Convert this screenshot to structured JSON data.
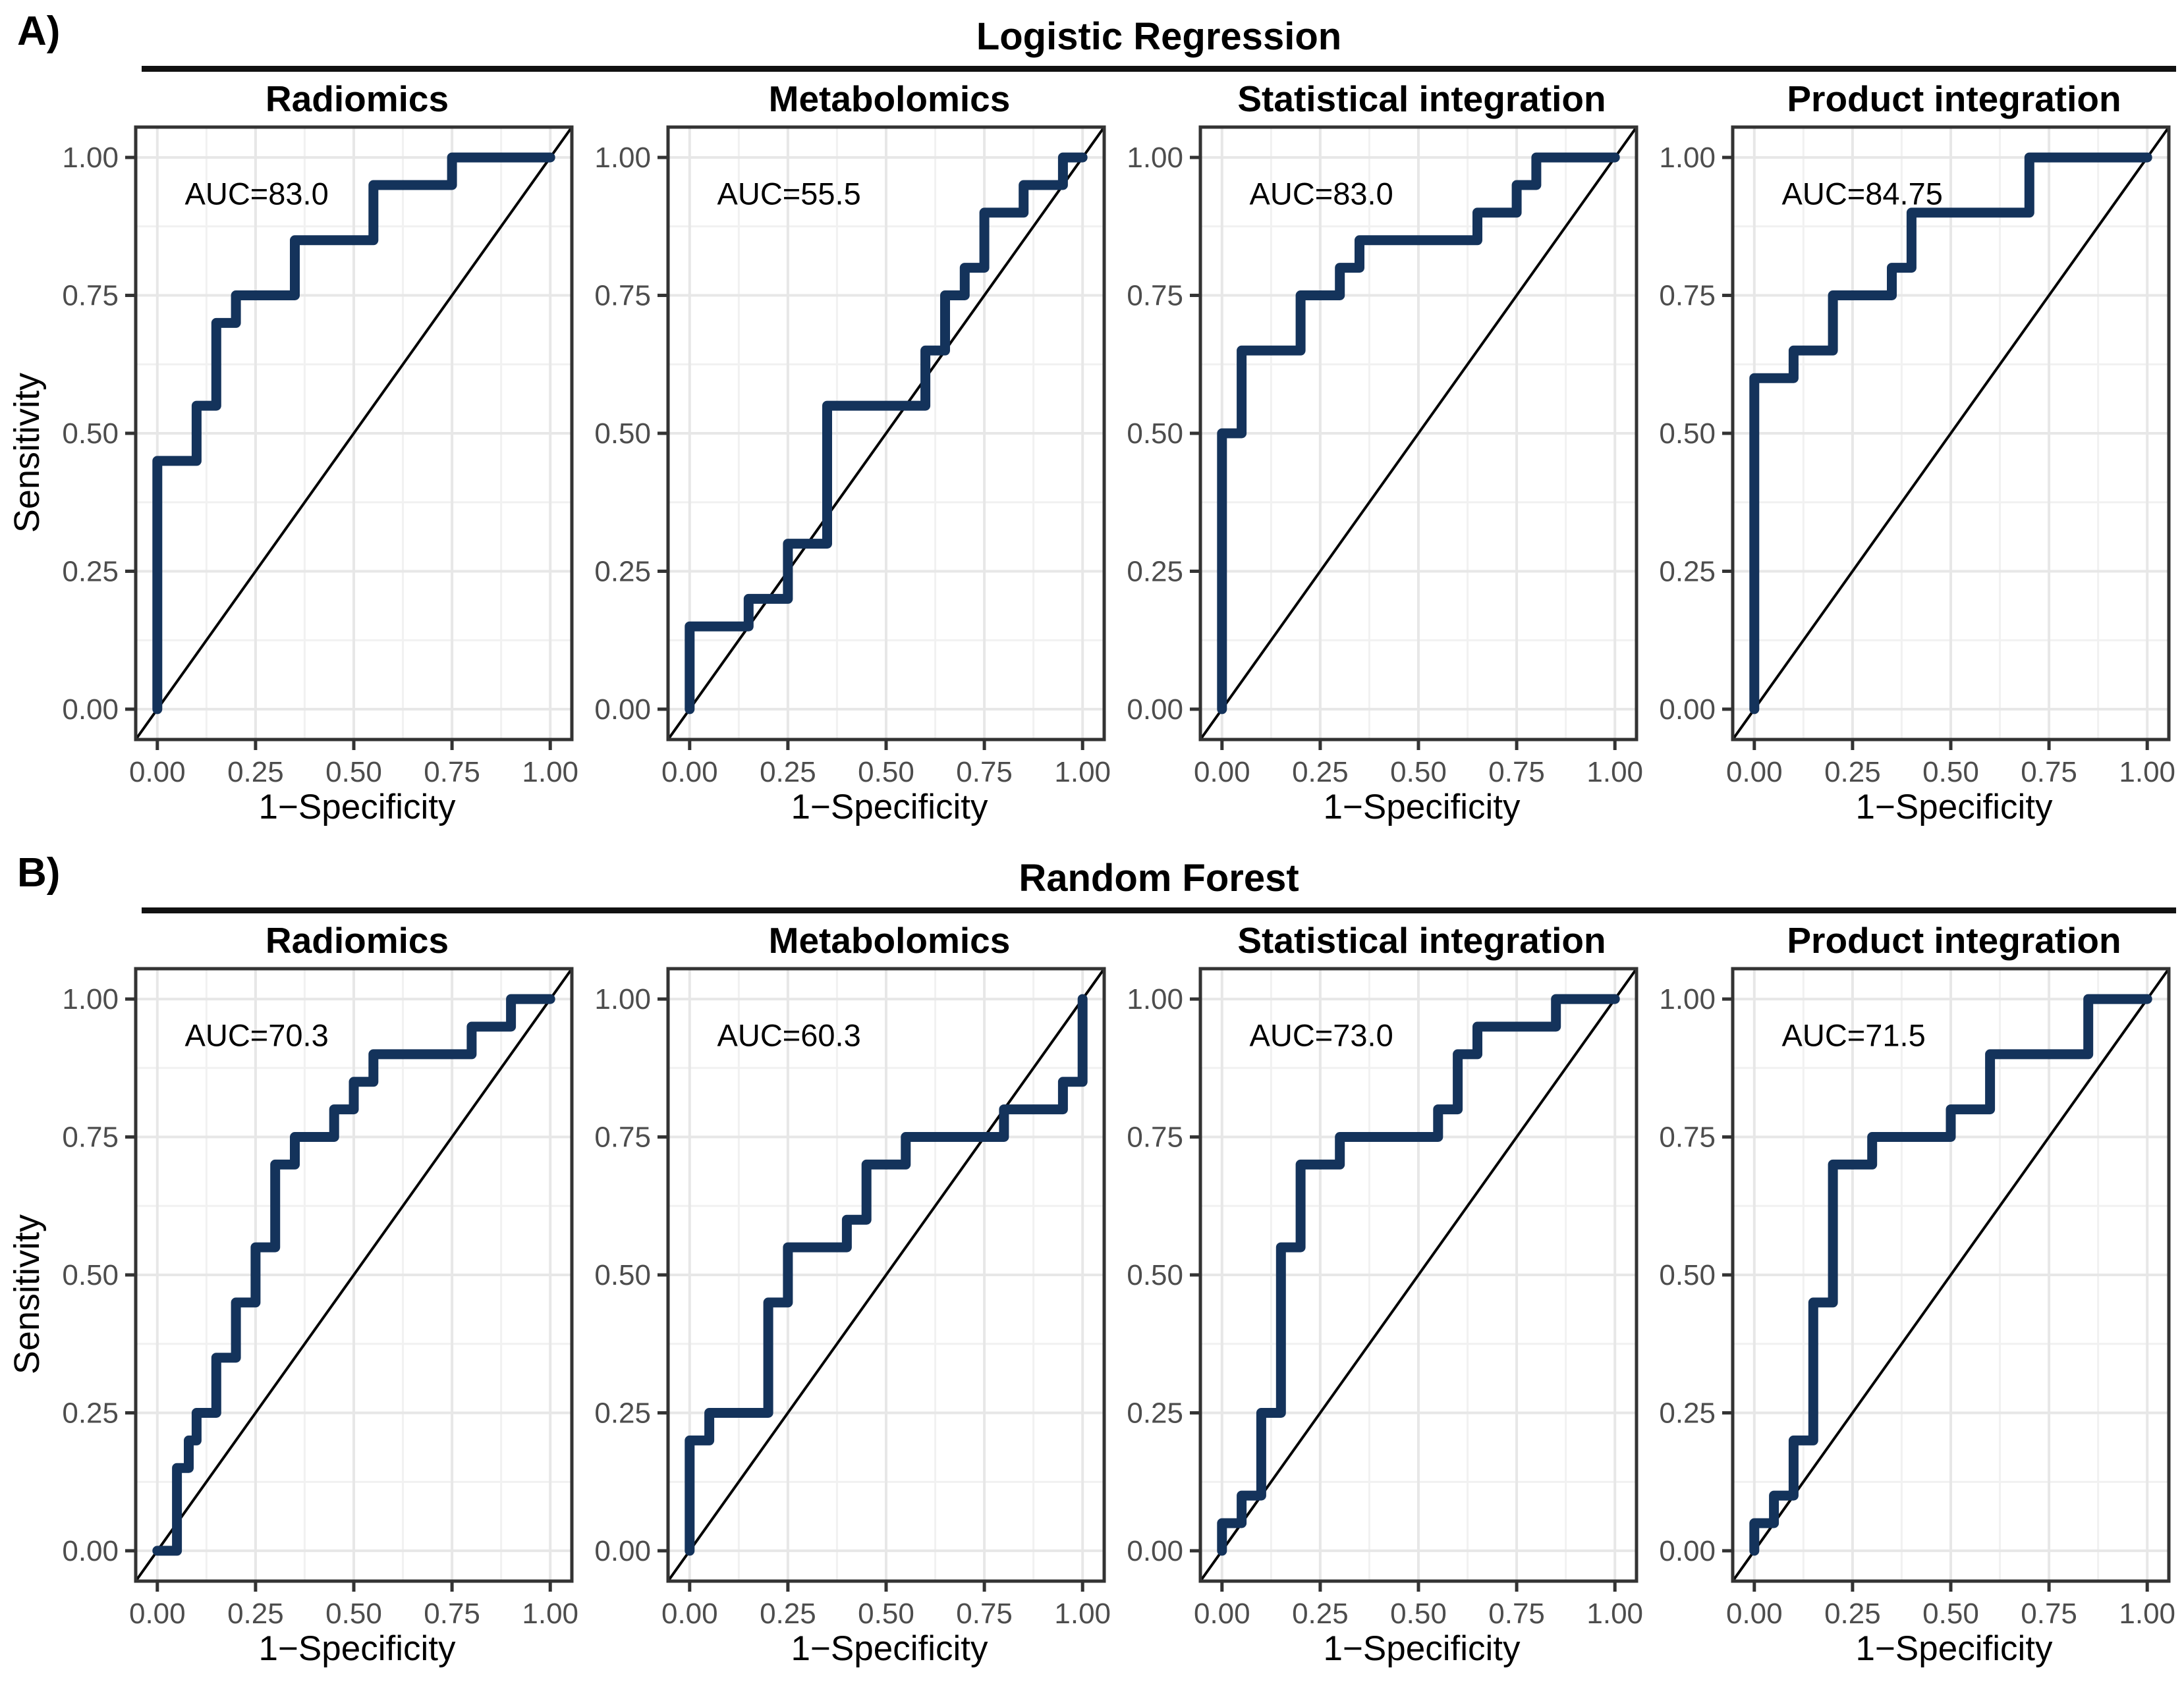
{
  "figure": {
    "sections": [
      {
        "label": "A)",
        "title": "Logistic Regression"
      },
      {
        "label": "B)",
        "title": "Random Forest"
      }
    ],
    "axes": {
      "x_label": "1−Specificity",
      "y_label": "Sensitivity",
      "tick_values": [
        0,
        0.25,
        0.5,
        0.75,
        1
      ],
      "tick_labels": [
        "0.00",
        "0.25",
        "0.50",
        "0.75",
        "1.00"
      ],
      "minor_tick_values": [
        0.125,
        0.375,
        0.625,
        0.875
      ]
    },
    "colors": {
      "curve": "#14335b",
      "diagonal": "#000000",
      "grid_major": "#e7e7e7",
      "grid_minor": "#f1f1f1",
      "panel_border": "#333333",
      "tick_text": "#4d4d4d"
    }
  },
  "chart_data": [
    {
      "type": "line",
      "model": "Logistic Regression",
      "title": "Radiomics",
      "annotation": "AUC=83.0",
      "auc": 83.0,
      "xlabel": "1−Specificity",
      "ylabel": "Sensitivity",
      "xlim": [
        0,
        1
      ],
      "ylim": [
        0,
        1
      ],
      "grid": true,
      "series": [
        {
          "name": "ROC curve",
          "points": [
            [
              0,
              0
            ],
            [
              0,
              0.45
            ],
            [
              0.1,
              0.45
            ],
            [
              0.1,
              0.55
            ],
            [
              0.15,
              0.55
            ],
            [
              0.15,
              0.7
            ],
            [
              0.2,
              0.7
            ],
            [
              0.2,
              0.75
            ],
            [
              0.35,
              0.75
            ],
            [
              0.35,
              0.85
            ],
            [
              0.55,
              0.85
            ],
            [
              0.55,
              0.95
            ],
            [
              0.75,
              0.95
            ],
            [
              0.75,
              1.0
            ],
            [
              1.0,
              1.0
            ]
          ]
        },
        {
          "name": "chance diagonal",
          "points": [
            [
              0,
              0
            ],
            [
              1,
              1
            ]
          ]
        }
      ]
    },
    {
      "type": "line",
      "model": "Logistic Regression",
      "title": "Metabolomics",
      "annotation": "AUC=55.5",
      "auc": 55.5,
      "xlabel": "1−Specificity",
      "ylabel": "Sensitivity",
      "xlim": [
        0,
        1
      ],
      "ylim": [
        0,
        1
      ],
      "grid": true,
      "series": [
        {
          "name": "ROC curve",
          "points": [
            [
              0,
              0
            ],
            [
              0,
              0.15
            ],
            [
              0.15,
              0.15
            ],
            [
              0.15,
              0.2
            ],
            [
              0.25,
              0.2
            ],
            [
              0.25,
              0.3
            ],
            [
              0.35,
              0.3
            ],
            [
              0.35,
              0.55
            ],
            [
              0.6,
              0.55
            ],
            [
              0.6,
              0.65
            ],
            [
              0.65,
              0.65
            ],
            [
              0.65,
              0.75
            ],
            [
              0.7,
              0.75
            ],
            [
              0.7,
              0.8
            ],
            [
              0.75,
              0.8
            ],
            [
              0.75,
              0.9
            ],
            [
              0.85,
              0.9
            ],
            [
              0.85,
              0.95
            ],
            [
              0.95,
              0.95
            ],
            [
              0.95,
              1.0
            ],
            [
              1.0,
              1.0
            ]
          ]
        },
        {
          "name": "chance diagonal",
          "points": [
            [
              0,
              0
            ],
            [
              1,
              1
            ]
          ]
        }
      ]
    },
    {
      "type": "line",
      "model": "Logistic Regression",
      "title": "Statistical integration",
      "annotation": "AUC=83.0",
      "auc": 83.0,
      "xlabel": "1−Specificity",
      "ylabel": "Sensitivity",
      "xlim": [
        0,
        1
      ],
      "ylim": [
        0,
        1
      ],
      "grid": true,
      "series": [
        {
          "name": "ROC curve",
          "points": [
            [
              0,
              0
            ],
            [
              0,
              0.5
            ],
            [
              0.05,
              0.5
            ],
            [
              0.05,
              0.65
            ],
            [
              0.2,
              0.65
            ],
            [
              0.2,
              0.75
            ],
            [
              0.3,
              0.75
            ],
            [
              0.3,
              0.8
            ],
            [
              0.35,
              0.8
            ],
            [
              0.35,
              0.85
            ],
            [
              0.65,
              0.85
            ],
            [
              0.65,
              0.9
            ],
            [
              0.75,
              0.9
            ],
            [
              0.75,
              0.95
            ],
            [
              0.8,
              0.95
            ],
            [
              0.8,
              1.0
            ],
            [
              1.0,
              1.0
            ]
          ]
        },
        {
          "name": "chance diagonal",
          "points": [
            [
              0,
              0
            ],
            [
              1,
              1
            ]
          ]
        }
      ]
    },
    {
      "type": "line",
      "model": "Logistic Regression",
      "title": "Product integration",
      "annotation": "AUC=84.75",
      "auc": 84.75,
      "xlabel": "1−Specificity",
      "ylabel": "Sensitivity",
      "xlim": [
        0,
        1
      ],
      "ylim": [
        0,
        1
      ],
      "grid": true,
      "series": [
        {
          "name": "ROC curve",
          "points": [
            [
              0,
              0
            ],
            [
              0,
              0.6
            ],
            [
              0.1,
              0.6
            ],
            [
              0.1,
              0.65
            ],
            [
              0.2,
              0.65
            ],
            [
              0.2,
              0.75
            ],
            [
              0.35,
              0.75
            ],
            [
              0.35,
              0.8
            ],
            [
              0.4,
              0.8
            ],
            [
              0.4,
              0.9
            ],
            [
              0.7,
              0.9
            ],
            [
              0.7,
              1.0
            ],
            [
              1.0,
              1.0
            ]
          ]
        },
        {
          "name": "chance diagonal",
          "points": [
            [
              0,
              0
            ],
            [
              1,
              1
            ]
          ]
        }
      ]
    },
    {
      "type": "line",
      "model": "Random Forest",
      "title": "Radiomics",
      "annotation": "AUC=70.3",
      "auc": 70.3,
      "xlabel": "1−Specificity",
      "ylabel": "Sensitivity",
      "xlim": [
        0,
        1
      ],
      "ylim": [
        0,
        1
      ],
      "grid": true,
      "series": [
        {
          "name": "ROC curve",
          "points": [
            [
              0,
              0
            ],
            [
              0.05,
              0
            ],
            [
              0.05,
              0.15
            ],
            [
              0.08,
              0.15
            ],
            [
              0.08,
              0.2
            ],
            [
              0.1,
              0.2
            ],
            [
              0.1,
              0.25
            ],
            [
              0.15,
              0.25
            ],
            [
              0.15,
              0.35
            ],
            [
              0.2,
              0.35
            ],
            [
              0.2,
              0.45
            ],
            [
              0.25,
              0.45
            ],
            [
              0.25,
              0.55
            ],
            [
              0.3,
              0.55
            ],
            [
              0.3,
              0.7
            ],
            [
              0.35,
              0.7
            ],
            [
              0.35,
              0.75
            ],
            [
              0.45,
              0.75
            ],
            [
              0.45,
              0.8
            ],
            [
              0.5,
              0.8
            ],
            [
              0.5,
              0.85
            ],
            [
              0.55,
              0.85
            ],
            [
              0.55,
              0.9
            ],
            [
              0.8,
              0.9
            ],
            [
              0.8,
              0.95
            ],
            [
              0.9,
              0.95
            ],
            [
              0.9,
              1.0
            ],
            [
              1.0,
              1.0
            ]
          ]
        },
        {
          "name": "chance diagonal",
          "points": [
            [
              0,
              0
            ],
            [
              1,
              1
            ]
          ]
        }
      ]
    },
    {
      "type": "line",
      "model": "Random Forest",
      "title": "Metabolomics",
      "annotation": "AUC=60.3",
      "auc": 60.3,
      "xlabel": "1−Specificity",
      "ylabel": "Sensitivity",
      "xlim": [
        0,
        1
      ],
      "ylim": [
        0,
        1
      ],
      "grid": true,
      "series": [
        {
          "name": "ROC curve",
          "points": [
            [
              0,
              0
            ],
            [
              0,
              0.2
            ],
            [
              0.05,
              0.2
            ],
            [
              0.05,
              0.25
            ],
            [
              0.2,
              0.25
            ],
            [
              0.2,
              0.45
            ],
            [
              0.25,
              0.45
            ],
            [
              0.25,
              0.55
            ],
            [
              0.4,
              0.55
            ],
            [
              0.4,
              0.6
            ],
            [
              0.45,
              0.6
            ],
            [
              0.45,
              0.7
            ],
            [
              0.55,
              0.7
            ],
            [
              0.55,
              0.75
            ],
            [
              0.8,
              0.75
            ],
            [
              0.8,
              0.8
            ],
            [
              0.95,
              0.8
            ],
            [
              0.95,
              0.85
            ],
            [
              1.0,
              0.85
            ],
            [
              1.0,
              1.0
            ]
          ]
        },
        {
          "name": "chance diagonal",
          "points": [
            [
              0,
              0
            ],
            [
              1,
              1
            ]
          ]
        }
      ]
    },
    {
      "type": "line",
      "model": "Random Forest",
      "title": "Statistical integration",
      "annotation": "AUC=73.0",
      "auc": 73.0,
      "xlabel": "1−Specificity",
      "ylabel": "Sensitivity",
      "xlim": [
        0,
        1
      ],
      "ylim": [
        0,
        1
      ],
      "grid": true,
      "series": [
        {
          "name": "ROC curve",
          "points": [
            [
              0,
              0
            ],
            [
              0,
              0.05
            ],
            [
              0.05,
              0.05
            ],
            [
              0.05,
              0.1
            ],
            [
              0.1,
              0.1
            ],
            [
              0.1,
              0.25
            ],
            [
              0.15,
              0.25
            ],
            [
              0.15,
              0.55
            ],
            [
              0.2,
              0.55
            ],
            [
              0.2,
              0.7
            ],
            [
              0.3,
              0.7
            ],
            [
              0.3,
              0.75
            ],
            [
              0.55,
              0.75
            ],
            [
              0.55,
              0.8
            ],
            [
              0.6,
              0.8
            ],
            [
              0.6,
              0.9
            ],
            [
              0.65,
              0.9
            ],
            [
              0.65,
              0.95
            ],
            [
              0.85,
              0.95
            ],
            [
              0.85,
              1.0
            ],
            [
              1.0,
              1.0
            ]
          ]
        },
        {
          "name": "chance diagonal",
          "points": [
            [
              0,
              0
            ],
            [
              1,
              1
            ]
          ]
        }
      ]
    },
    {
      "type": "line",
      "model": "Random Forest",
      "title": "Product integration",
      "annotation": "AUC=71.5",
      "auc": 71.5,
      "xlabel": "1−Specificity",
      "ylabel": "Sensitivity",
      "xlim": [
        0,
        1
      ],
      "ylim": [
        0,
        1
      ],
      "grid": true,
      "series": [
        {
          "name": "ROC curve",
          "points": [
            [
              0,
              0
            ],
            [
              0,
              0.05
            ],
            [
              0.05,
              0.05
            ],
            [
              0.05,
              0.1
            ],
            [
              0.1,
              0.1
            ],
            [
              0.1,
              0.2
            ],
            [
              0.15,
              0.2
            ],
            [
              0.15,
              0.45
            ],
            [
              0.2,
              0.45
            ],
            [
              0.2,
              0.7
            ],
            [
              0.3,
              0.7
            ],
            [
              0.3,
              0.75
            ],
            [
              0.5,
              0.75
            ],
            [
              0.5,
              0.8
            ],
            [
              0.6,
              0.8
            ],
            [
              0.6,
              0.9
            ],
            [
              0.85,
              0.9
            ],
            [
              0.85,
              1.0
            ],
            [
              1.0,
              1.0
            ]
          ]
        },
        {
          "name": "chance diagonal",
          "points": [
            [
              0,
              0
            ],
            [
              1,
              1
            ]
          ]
        }
      ]
    }
  ]
}
